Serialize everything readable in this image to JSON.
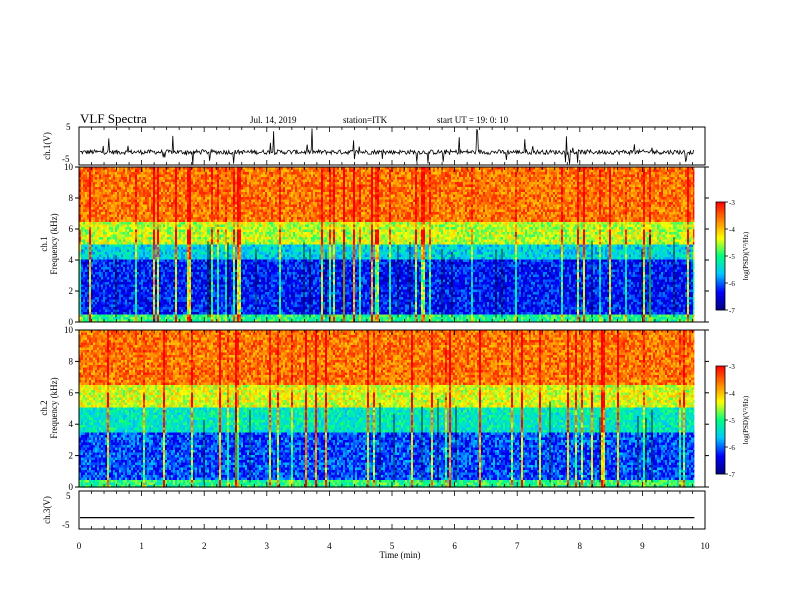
{
  "header": {
    "title": "VLF Spectra",
    "date": "Jul. 14, 2019",
    "station": "station=ITK",
    "start": "start UT = 19: 0: 10"
  },
  "chart_data": [
    {
      "type": "line",
      "panel": "ch1-waveform",
      "ylabel": "ch.1(V)",
      "ylim": [
        -5,
        5
      ],
      "yticks": [
        "5",
        "-5"
      ],
      "x_range_min": [
        0,
        9.83
      ],
      "baseline_v": -1.6,
      "description_values": {
        "typical_spread_v": 1.2,
        "max_spike_v": 5,
        "min_spike_v": -5
      },
      "color": "#000000"
    },
    {
      "type": "heatmap",
      "panel": "ch1-spectrogram",
      "ylabel_line1": "ch.1",
      "ylabel_line2": "Frequency (kHz)",
      "ylim": [
        0,
        10
      ],
      "yticks": [
        "0",
        "2",
        "4",
        "6",
        "8",
        "10"
      ],
      "x_range_min": [
        0,
        9.83
      ],
      "log_psd_by_band": [
        {
          "freq_khz": [
            0,
            0.5
          ],
          "log_psd": -5.0
        },
        {
          "freq_khz": [
            0.5,
            4.0
          ],
          "log_psd": -6.3
        },
        {
          "freq_khz": [
            4.0,
            5.0
          ],
          "log_psd": -5.5
        },
        {
          "freq_khz": [
            5.0,
            6.5
          ],
          "log_psd": -4.5
        },
        {
          "freq_khz": [
            6.5,
            10.0
          ],
          "log_psd": -3.6
        }
      ],
      "colorbar": {
        "label": "log(PSD)(V²/Hz)",
        "range": [
          -7,
          -3
        ],
        "ticks": [
          "-3",
          "-4",
          "-5",
          "-6",
          "-7"
        ]
      }
    },
    {
      "type": "heatmap",
      "panel": "ch2-spectrogram",
      "ylabel_line1": "ch.2",
      "ylabel_line2": "Frequency (kHz)",
      "ylim": [
        0,
        10
      ],
      "yticks": [
        "0",
        "2",
        "4",
        "6",
        "8",
        "10"
      ],
      "x_range_min": [
        0,
        9.83
      ],
      "log_psd_by_band": [
        {
          "freq_khz": [
            0,
            0.5
          ],
          "log_psd": -5.0
        },
        {
          "freq_khz": [
            0.5,
            3.5
          ],
          "log_psd": -6.1
        },
        {
          "freq_khz": [
            3.5,
            5.0
          ],
          "log_psd": -5.3
        },
        {
          "freq_khz": [
            5.0,
            6.5
          ],
          "log_psd": -4.4
        },
        {
          "freq_khz": [
            6.5,
            10.0
          ],
          "log_psd": -3.6
        }
      ],
      "colorbar": {
        "label": "log(PSD)(V²/Hz)",
        "range": [
          -7,
          -3
        ],
        "ticks": [
          "-3",
          "-4",
          "-5",
          "-6",
          "-7"
        ]
      }
    },
    {
      "type": "line",
      "panel": "ch3-waveform",
      "ylabel": "ch.3(V)",
      "ylim": [
        -5,
        5
      ],
      "yticks": [
        "5",
        "-5"
      ],
      "x_range_min": [
        0,
        9.83
      ],
      "constant_v": -2.0,
      "color": "#000000"
    }
  ],
  "xaxis": {
    "label": "Time (min)",
    "range": [
      0,
      10
    ],
    "ticks": [
      "0",
      "1",
      "2",
      "3",
      "4",
      "5",
      "6",
      "7",
      "8",
      "9",
      "10"
    ]
  },
  "colors": {
    "cmap": [
      "#000080",
      "#0000ff",
      "#00c8ff",
      "#00ff80",
      "#ffff00",
      "#ff8000",
      "#ff0000"
    ],
    "line": "#000000",
    "background": "#ffffff"
  }
}
